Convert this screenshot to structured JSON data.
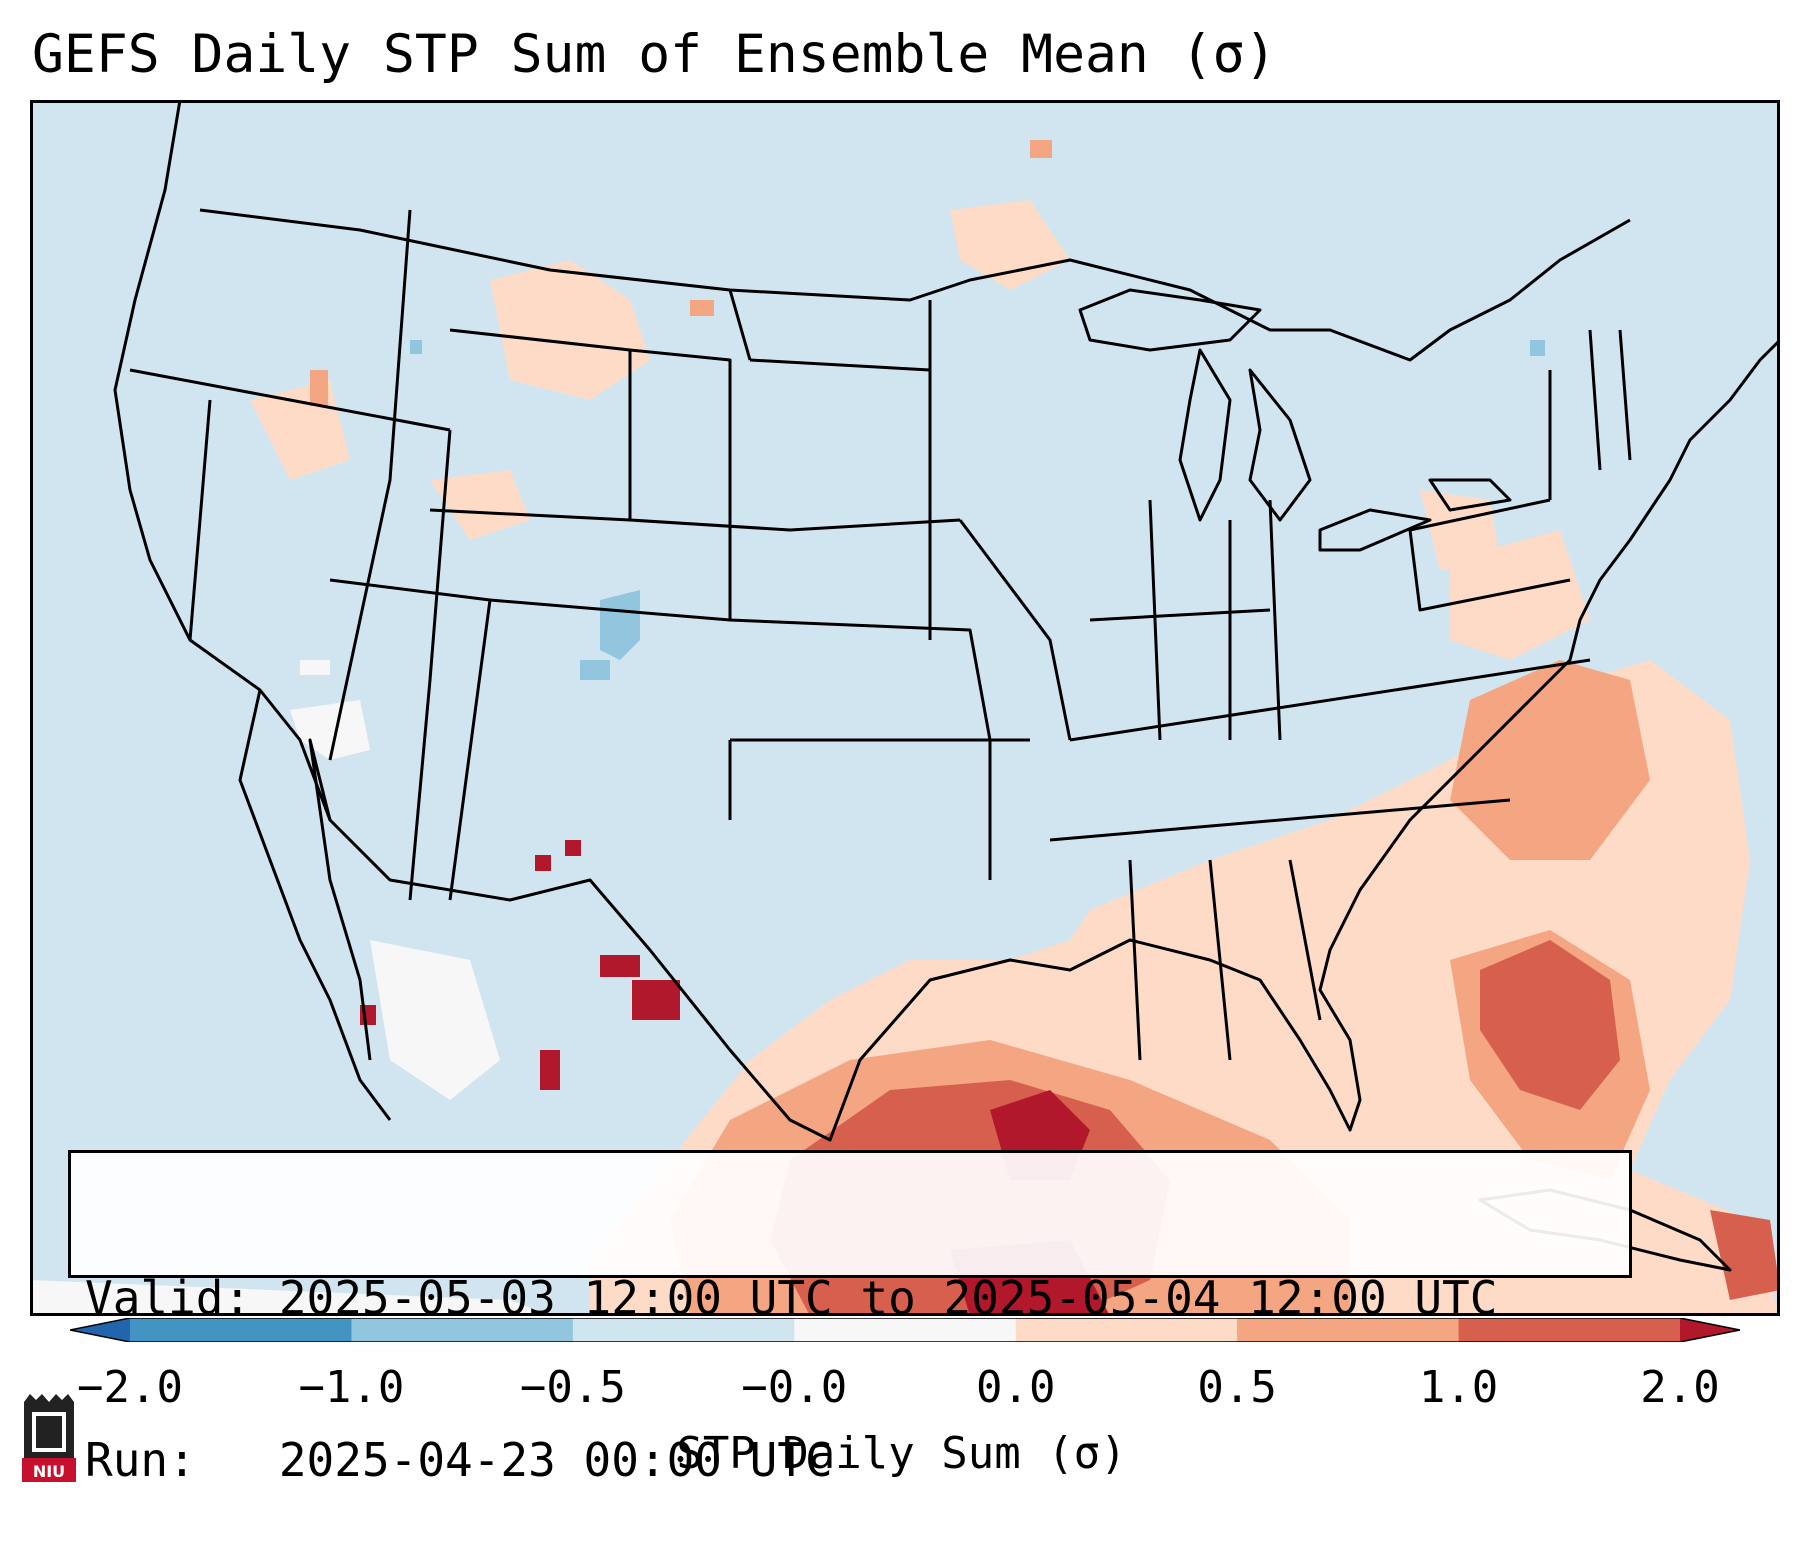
{
  "title": "GEFS Daily STP Sum of Ensemble Mean (σ)",
  "info": {
    "valid": "Valid: 2025-05-03 12:00 UTC to 2025-05-04 12:00 UTC",
    "run": "Run:   2025-04-23 00:00 UTC"
  },
  "colorbar": {
    "label": "STP Daily Sum (σ)",
    "ticks": [
      "−2.0",
      "−1.0",
      "−0.5",
      "−0.0",
      "0.0",
      "0.5",
      "1.0",
      "2.0"
    ],
    "colors": [
      "#2166ac",
      "#4393c3",
      "#92c5de",
      "#d1e5f0",
      "#f7f7f7",
      "#fddbc7",
      "#f4a582",
      "#d6604d",
      "#b2182b"
    ]
  },
  "logo": {
    "text": "NIU"
  },
  "map": {
    "background": "#d1e5f0",
    "outline_color": "#000000",
    "region": "Contiguous United States and Gulf of Mexico"
  }
}
